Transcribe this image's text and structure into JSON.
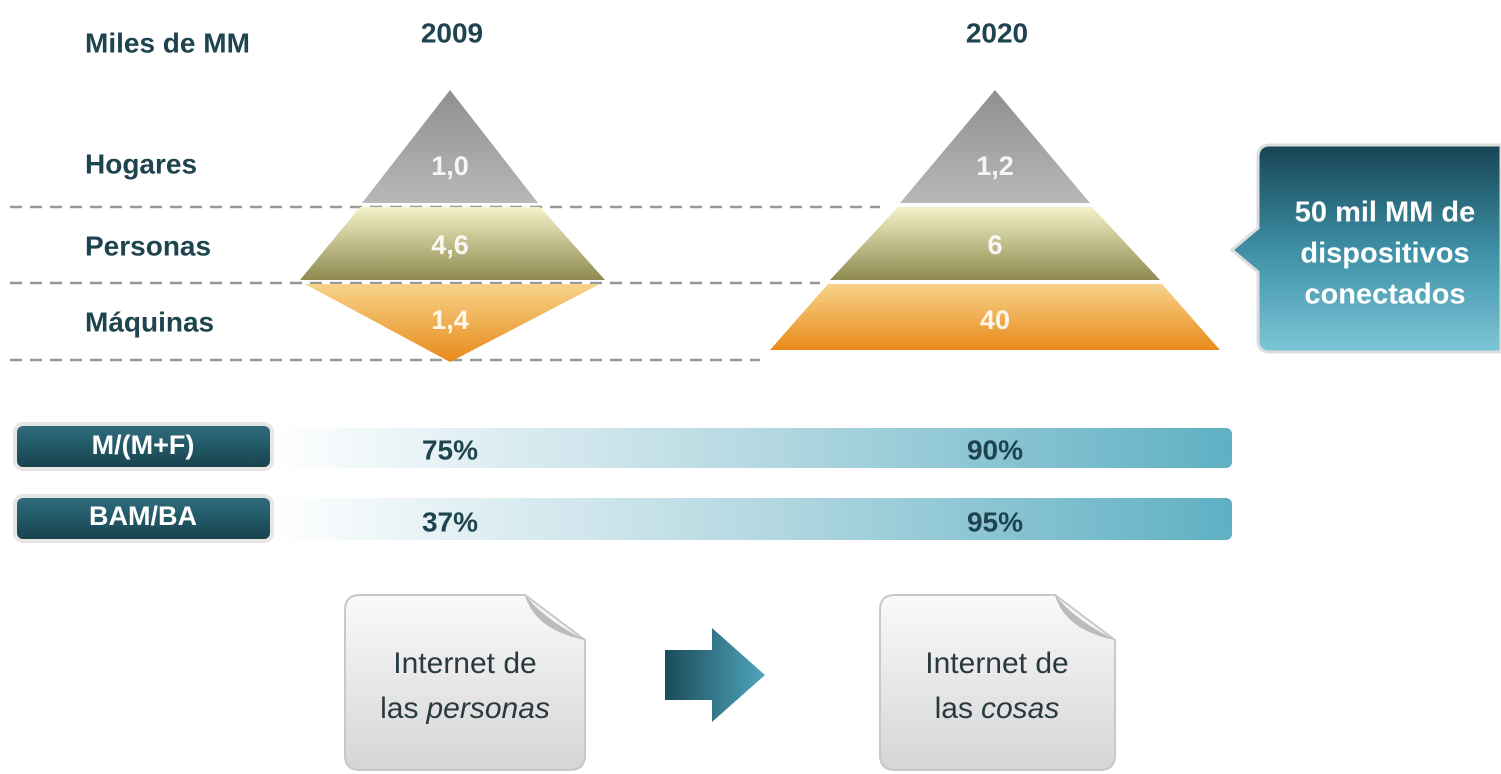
{
  "unit_label": "Miles de MM",
  "years": [
    "2009",
    "2020"
  ],
  "rows": [
    "Hogares",
    "Personas",
    "Máquinas"
  ],
  "pyramids": [
    [
      "1,0",
      "4,6",
      "1,4"
    ],
    [
      "1,2",
      "6",
      "40"
    ]
  ],
  "callout": [
    "50 mil MM de",
    "dispositivos",
    "conectados"
  ],
  "ratios": [
    {
      "label": "M/(M+F)",
      "values": [
        "75%",
        "90%"
      ]
    },
    {
      "label": "BAM/BA",
      "values": [
        "37%",
        "95%"
      ]
    }
  ],
  "cards": [
    {
      "line1": "Internet de",
      "prefix": "las",
      "emphasis": "personas"
    },
    {
      "line1": "Internet de",
      "prefix": "las",
      "emphasis": "cosas"
    }
  ]
}
